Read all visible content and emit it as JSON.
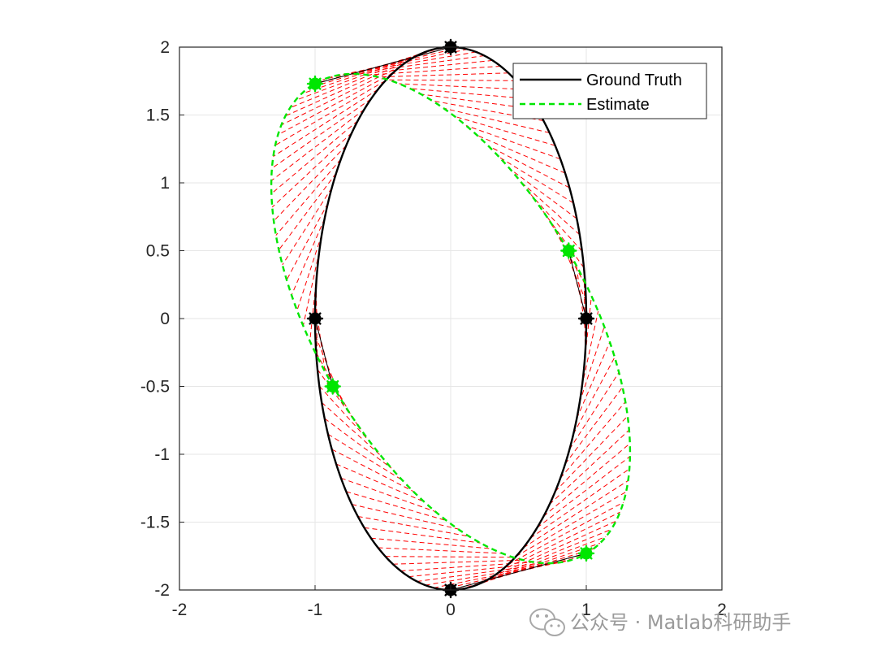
{
  "chart_data": {
    "type": "line",
    "xlim": [
      -2,
      2
    ],
    "ylim": [
      -2,
      2
    ],
    "xticks": [
      "-2",
      "-1",
      "0",
      "1",
      "2"
    ],
    "yticks": [
      "2",
      "1.5",
      "1",
      "0.5",
      "0",
      "-0.5",
      "-1",
      "-1.5",
      "-2"
    ],
    "grid": true,
    "legend": "top-right",
    "series": [
      {
        "name": "Ground Truth",
        "style": "solid",
        "color": "#000000",
        "shape": "ellipse",
        "semi_axis_x": 1,
        "semi_axis_y": 2,
        "center": [
          0,
          0
        ],
        "markers": [
          [
            1,
            0
          ],
          [
            0,
            2
          ],
          [
            -1,
            0
          ],
          [
            0,
            -2
          ]
        ]
      },
      {
        "name": "Estimate",
        "style": "dashed",
        "color": "#00e600",
        "shape": "ellipse",
        "semi_axis_x": 1,
        "semi_axis_y": 2,
        "center": [
          0,
          0
        ],
        "rotation_deg": 30,
        "markers": [
          [
            0.87,
            0.5
          ],
          [
            -1.0,
            1.73
          ],
          [
            -0.87,
            -0.5
          ],
          [
            1.0,
            -1.73
          ]
        ]
      }
    ],
    "residuals": {
      "color": "#ff0000",
      "style": "dashed",
      "count": 100
    }
  },
  "watermark": {
    "text": "公众号 · Matlab科研助手",
    "icon": "wechat-icon"
  }
}
